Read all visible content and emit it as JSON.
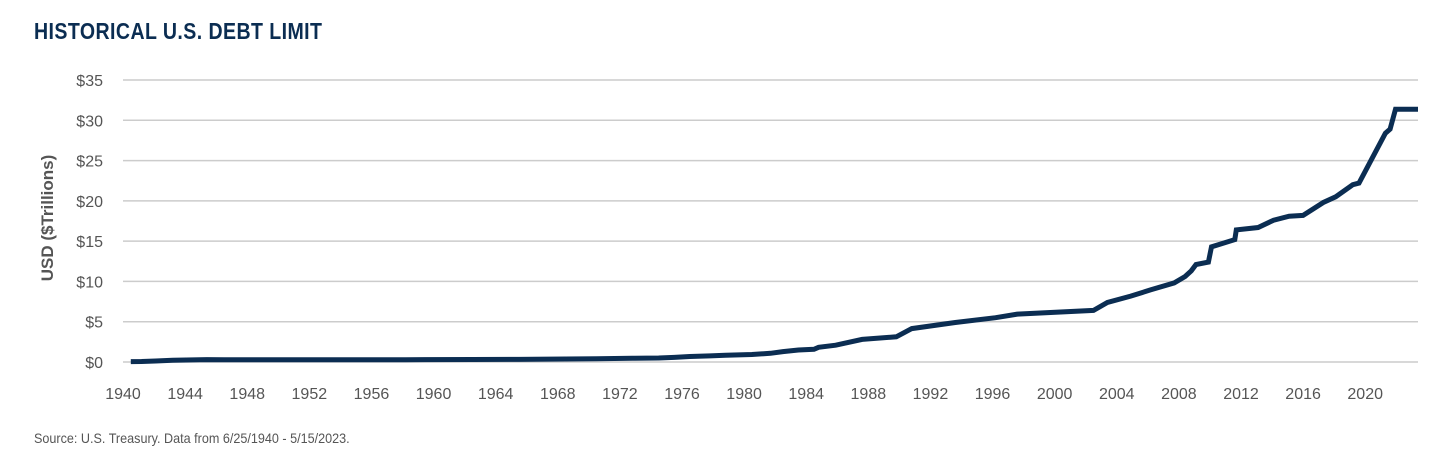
{
  "title": "HISTORICAL U.S. DEBT LIMIT",
  "source": "Source: U.S. Treasury. Data from 6/25/1940 - 5/15/2023.",
  "colors": {
    "line": "#0b2d52",
    "grid": "#cccccc",
    "title": "#0b2d52",
    "text": "#555555"
  },
  "chart_data": {
    "type": "line",
    "title": "HISTORICAL U.S. DEBT LIMIT",
    "xlabel": "",
    "ylabel": "USD ($Trillions)",
    "xlim": [
      1940,
      2023.4
    ],
    "ylim": [
      0,
      35
    ],
    "x_ticks": [
      "1940",
      "1944",
      "1948",
      "1952",
      "1956",
      "1960",
      "1964",
      "1968",
      "1972",
      "1976",
      "1980",
      "1984",
      "1988",
      "1992",
      "1996",
      "2000",
      "2004",
      "2008",
      "2012",
      "2016",
      "2020"
    ],
    "y_ticks": [
      "$0",
      "$5",
      "$10",
      "$15",
      "$20",
      "$25",
      "$30",
      "$35"
    ],
    "grid": true,
    "series": [
      {
        "values": [
          [
            1940.5,
            0.049
          ],
          [
            1941.2,
            0.065
          ],
          [
            1942.1,
            0.125
          ],
          [
            1943.2,
            0.21
          ],
          [
            1944.5,
            0.26
          ],
          [
            1945.4,
            0.3
          ],
          [
            1946.5,
            0.275
          ],
          [
            1954.6,
            0.281
          ],
          [
            1956.5,
            0.278
          ],
          [
            1958.2,
            0.28
          ],
          [
            1959.4,
            0.295
          ],
          [
            1962.5,
            0.308
          ],
          [
            1965.5,
            0.328
          ],
          [
            1967.5,
            0.358
          ],
          [
            1970.5,
            0.395
          ],
          [
            1972.8,
            0.465
          ],
          [
            1974.5,
            0.495
          ],
          [
            1975.5,
            0.577
          ],
          [
            1976.5,
            0.682
          ],
          [
            1977.8,
            0.752
          ],
          [
            1978.8,
            0.83
          ],
          [
            1980.5,
            0.935
          ],
          [
            1981.7,
            1.079
          ],
          [
            1982.5,
            1.29
          ],
          [
            1983.5,
            1.49
          ],
          [
            1984.5,
            1.573
          ],
          [
            1984.8,
            1.824
          ],
          [
            1985.9,
            2.079
          ],
          [
            1987.6,
            2.8
          ],
          [
            1989.8,
            3.123
          ],
          [
            1990.8,
            4.145
          ],
          [
            1993.6,
            4.9
          ],
          [
            1996.2,
            5.5
          ],
          [
            1997.6,
            5.95
          ],
          [
            2002.5,
            6.4
          ],
          [
            2003.4,
            7.384
          ],
          [
            2004.9,
            8.184
          ],
          [
            2006.2,
            8.965
          ],
          [
            2007.7,
            9.815
          ],
          [
            2008.4,
            10.615
          ],
          [
            2008.8,
            11.315
          ],
          [
            2009.1,
            12.104
          ],
          [
            2009.9,
            12.394
          ],
          [
            2010.1,
            14.294
          ],
          [
            2011.6,
            15.194
          ],
          [
            2011.7,
            16.394
          ],
          [
            2013.1,
            16.699
          ],
          [
            2014.1,
            17.6
          ],
          [
            2015.1,
            18.1
          ],
          [
            2016.0,
            18.2
          ],
          [
            2017.3,
            19.8
          ],
          [
            2018.1,
            20.5
          ],
          [
            2019.2,
            22.0
          ],
          [
            2019.6,
            22.2
          ],
          [
            2021.3,
            28.4
          ],
          [
            2021.6,
            28.9
          ],
          [
            2021.95,
            31.381
          ],
          [
            2023.4,
            31.381
          ]
        ]
      }
    ]
  }
}
